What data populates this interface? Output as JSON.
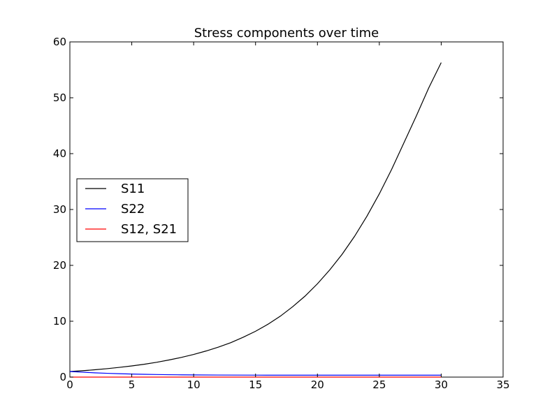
{
  "chart_data": {
    "type": "line",
    "title": "Stress components over time",
    "xlabel": "",
    "ylabel": "",
    "xlim": [
      0,
      35
    ],
    "ylim": [
      0,
      60
    ],
    "xticks": [
      0,
      5,
      10,
      15,
      20,
      25,
      30,
      35
    ],
    "yticks": [
      0,
      10,
      20,
      30,
      40,
      50,
      60
    ],
    "grid": false,
    "legend_position": "center-left",
    "series": [
      {
        "name": "S11",
        "color": "#000000",
        "x": [
          0,
          1,
          2,
          3,
          4,
          5,
          6,
          7,
          8,
          9,
          10,
          11,
          12,
          13,
          14,
          15,
          16,
          17,
          18,
          19,
          20,
          21,
          22,
          23,
          24,
          25,
          26,
          27,
          28,
          29,
          30
        ],
        "y": [
          1.0,
          1.14,
          1.31,
          1.51,
          1.74,
          2.0,
          2.3,
          2.65,
          3.06,
          3.52,
          4.05,
          4.67,
          5.37,
          6.17,
          7.13,
          8.2,
          9.46,
          10.9,
          12.6,
          14.5,
          16.7,
          19.2,
          22.0,
          25.2,
          28.8,
          32.8,
          37.2,
          42.0,
          46.8,
          51.8,
          56.3
        ]
      },
      {
        "name": "S22",
        "color": "#0000ff",
        "x": [
          0,
          1,
          2,
          3,
          4,
          5,
          6,
          7,
          8,
          9,
          10,
          12,
          15,
          20,
          25,
          30
        ],
        "y": [
          1.0,
          0.88,
          0.77,
          0.68,
          0.61,
          0.55,
          0.5,
          0.46,
          0.43,
          0.41,
          0.39,
          0.37,
          0.35,
          0.34,
          0.34,
          0.34
        ]
      },
      {
        "name": "S12, S21",
        "color": "#ff0000",
        "x": [
          0,
          30
        ],
        "y": [
          0,
          0
        ]
      }
    ]
  }
}
